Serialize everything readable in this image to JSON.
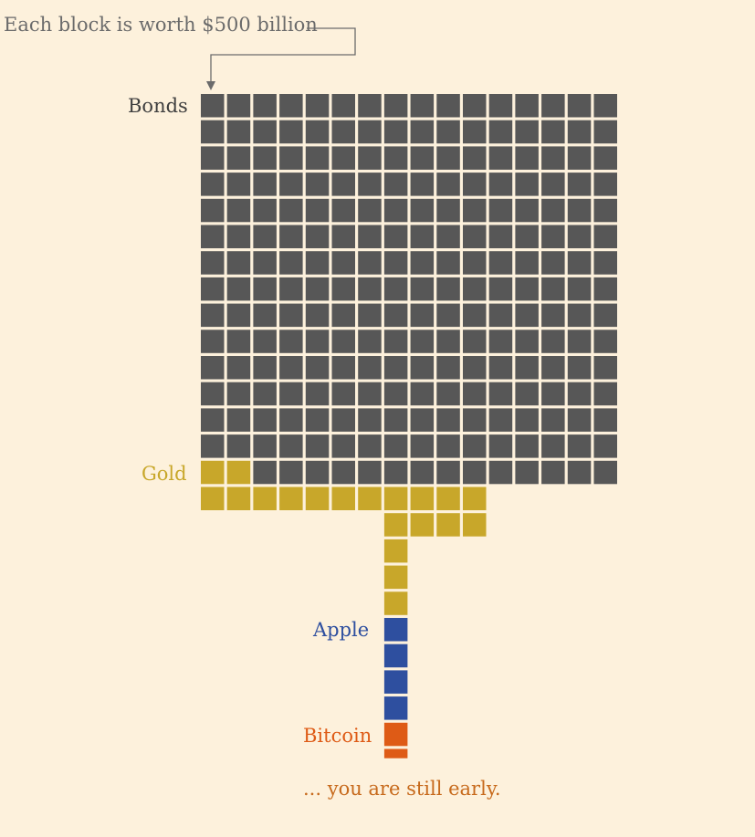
{
  "chart_data": {
    "type": "waffle",
    "unit_note": "Each block is worth $500 billion",
    "unit_value_billion_usd": 500,
    "series": [
      {
        "name": "Bonds",
        "blocks": 242,
        "color": "#575757"
      },
      {
        "name": "Gold",
        "blocks": 20,
        "color": "#c8a72a"
      },
      {
        "name": "Apple",
        "blocks": 4,
        "color": "#2e4f9f"
      },
      {
        "name": "Bitcoin",
        "blocks": 1.5,
        "color": "#de5b16"
      }
    ],
    "footnote": "... you are still early.",
    "footnote_color": "#c76a1c",
    "background": "#fdf1dc"
  }
}
